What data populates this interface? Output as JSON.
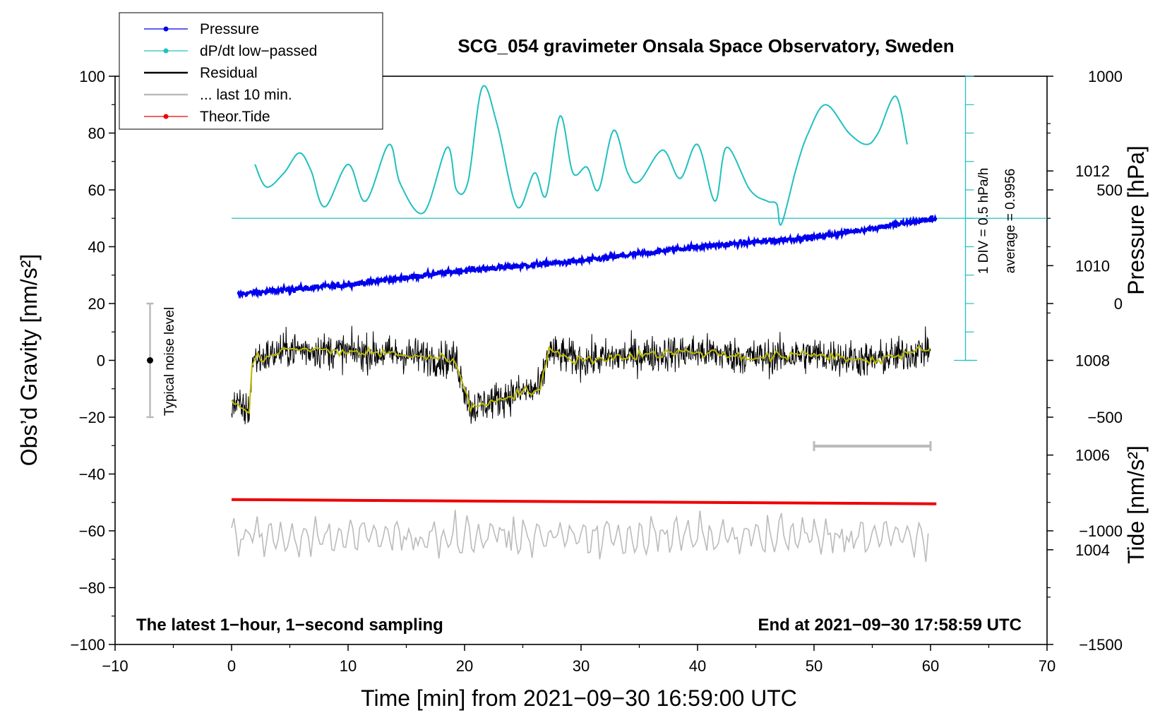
{
  "chart_data": {
    "type": "line",
    "title": "SCG_054 gravimeter Onsala Space Observatory, Sweden",
    "xlabel": "Time [min] from 2021−09−30 16:59:00 UTC",
    "ylabel_left": "Obs’d Gravity [nm/s²]",
    "ylabel_right_top": "Pressure [hPa]",
    "ylabel_right_bottom": "Tide [nm/s²]",
    "xlim": [
      -10,
      70
    ],
    "ylim": [
      -100,
      100
    ],
    "pressure_lim": [
      1002,
      1014
    ],
    "tide_lim": [
      -1500,
      1000
    ],
    "x_ticks": [
      "−10",
      "0",
      "10",
      "20",
      "30",
      "40",
      "50",
      "60",
      "70"
    ],
    "y_ticks": [
      "−100",
      "−80",
      "−60",
      "−40",
      "−20",
      "0",
      "20",
      "40",
      "60",
      "80",
      "100"
    ],
    "pressure_ticks": [
      "1004",
      "1006",
      "1008",
      "1010",
      "1012"
    ],
    "tide_ticks": [
      "−1500",
      "−1000",
      "−500",
      "0",
      "500",
      "1000"
    ],
    "footer_left": "The latest 1−hour, 1−second sampling",
    "footer_right": "End at 2021−09−30 17:58:59 UTC",
    "noise_label": "Typical noise level",
    "dpdt_scale_label": "1 DIV = 0.5 hPa/h",
    "average_label": "average = 0.9956",
    "legend": [
      {
        "label": "Pressure",
        "color": "#0000ee",
        "marker": true
      },
      {
        "label": "dP/dt low−passed",
        "color": "#20c0c0",
        "marker": true
      },
      {
        "label": "Residual",
        "color": "#000000",
        "marker": false
      },
      {
        "label": "... last 10 min.",
        "color": "#bbbbbb",
        "marker": false
      },
      {
        "label": "Theor.Tide",
        "color": "#ee0000",
        "marker": true
      }
    ],
    "colors": {
      "pressure": "#0000ee",
      "dpdt": "#20c0c0",
      "residual": "#000000",
      "residual_smooth": "#bbbb00",
      "last10": "#bbbbbb",
      "tide": "#ee0000"
    },
    "series": [
      {
        "name": "Pressure",
        "unit": "hPa",
        "x": [
          0.5,
          10,
          20,
          30,
          40,
          50,
          60.5
        ],
        "values": [
          1009.4,
          1009.6,
          1009.9,
          1010.1,
          1010.4,
          1010.6,
          1011.0
        ]
      },
      {
        "name": "dP/dt low−passed",
        "unit": "nm/s² scale",
        "x": [
          2,
          3,
          4.5,
          5.8,
          6.8,
          8,
          10,
          11.5,
          13.5,
          14.5,
          16.5,
          18.5,
          19.3,
          20.3,
          21.5,
          22.8,
          24.5,
          26,
          27,
          28.2,
          29.3,
          30.5,
          31.5,
          32.8,
          34,
          35,
          37,
          38.5,
          40,
          41.5,
          42.5,
          44.5,
          46,
          46.8,
          47.2,
          48.5,
          49.5,
          51,
          53,
          54.5,
          55.5,
          57,
          58
        ],
        "values": [
          69,
          61,
          66,
          73,
          67,
          54,
          69,
          56,
          76,
          62,
          52,
          75,
          60,
          63,
          96,
          83,
          54,
          66,
          58,
          86,
          66,
          68,
          60,
          81,
          66,
          63,
          74,
          64,
          76,
          56,
          75,
          60,
          56,
          55,
          48,
          68,
          80,
          90,
          80,
          76,
          80,
          93,
          76
        ]
      },
      {
        "name": "Residual",
        "unit": "nm/s²",
        "x": [
          0,
          1.5,
          1.8,
          5,
          10,
          15,
          19.3,
          20.5,
          24,
          26.5,
          27.2,
          30,
          35,
          40,
          45,
          50,
          55,
          60
        ],
        "values": [
          -15,
          -18,
          0,
          4,
          3,
          2,
          0,
          -17,
          -12,
          -10,
          3,
          0,
          2,
          3,
          1,
          2,
          0,
          4
        ]
      },
      {
        "name": "... last 10 min.",
        "unit": "nm/s²",
        "x": [
          0,
          60
        ],
        "values": [
          -62,
          -62
        ]
      },
      {
        "name": "Theor.Tide",
        "unit": "nm/s²",
        "x": [
          0,
          60.5
        ],
        "values": [
          -49,
          -50.5
        ]
      }
    ]
  }
}
